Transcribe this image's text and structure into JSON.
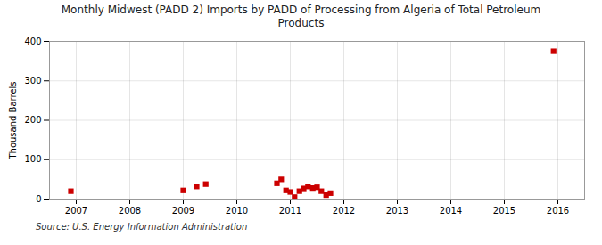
{
  "chart_data": {
    "type": "scatter",
    "title": "Monthly Midwest (PADD 2) Imports by PADD of Processing from Algeria of Total Petroleum\nProducts",
    "ylabel": "Thousand Barrels",
    "caption": "Source: U.S. Energy Information Administration",
    "x": [
      2006.9,
      2009.0,
      2009.25,
      2009.42,
      2010.75,
      2010.83,
      2010.92,
      2011.0,
      2011.08,
      2011.17,
      2011.25,
      2011.33,
      2011.42,
      2011.5,
      2011.58,
      2011.67,
      2011.75,
      2015.92
    ],
    "values": [
      20,
      22,
      32,
      38,
      40,
      50,
      22,
      18,
      5,
      20,
      27,
      32,
      28,
      30,
      20,
      10,
      15,
      375
    ],
    "color": "#cc0000",
    "marker": "square",
    "xlim": [
      2006.5,
      2016.5
    ],
    "xticks": [
      2007,
      2008,
      2009,
      2010,
      2011,
      2012,
      2013,
      2014,
      2015,
      2016
    ],
    "ylim": [
      0,
      400
    ],
    "yticks": [
      0,
      100,
      200,
      300,
      400
    ],
    "grid": true
  }
}
